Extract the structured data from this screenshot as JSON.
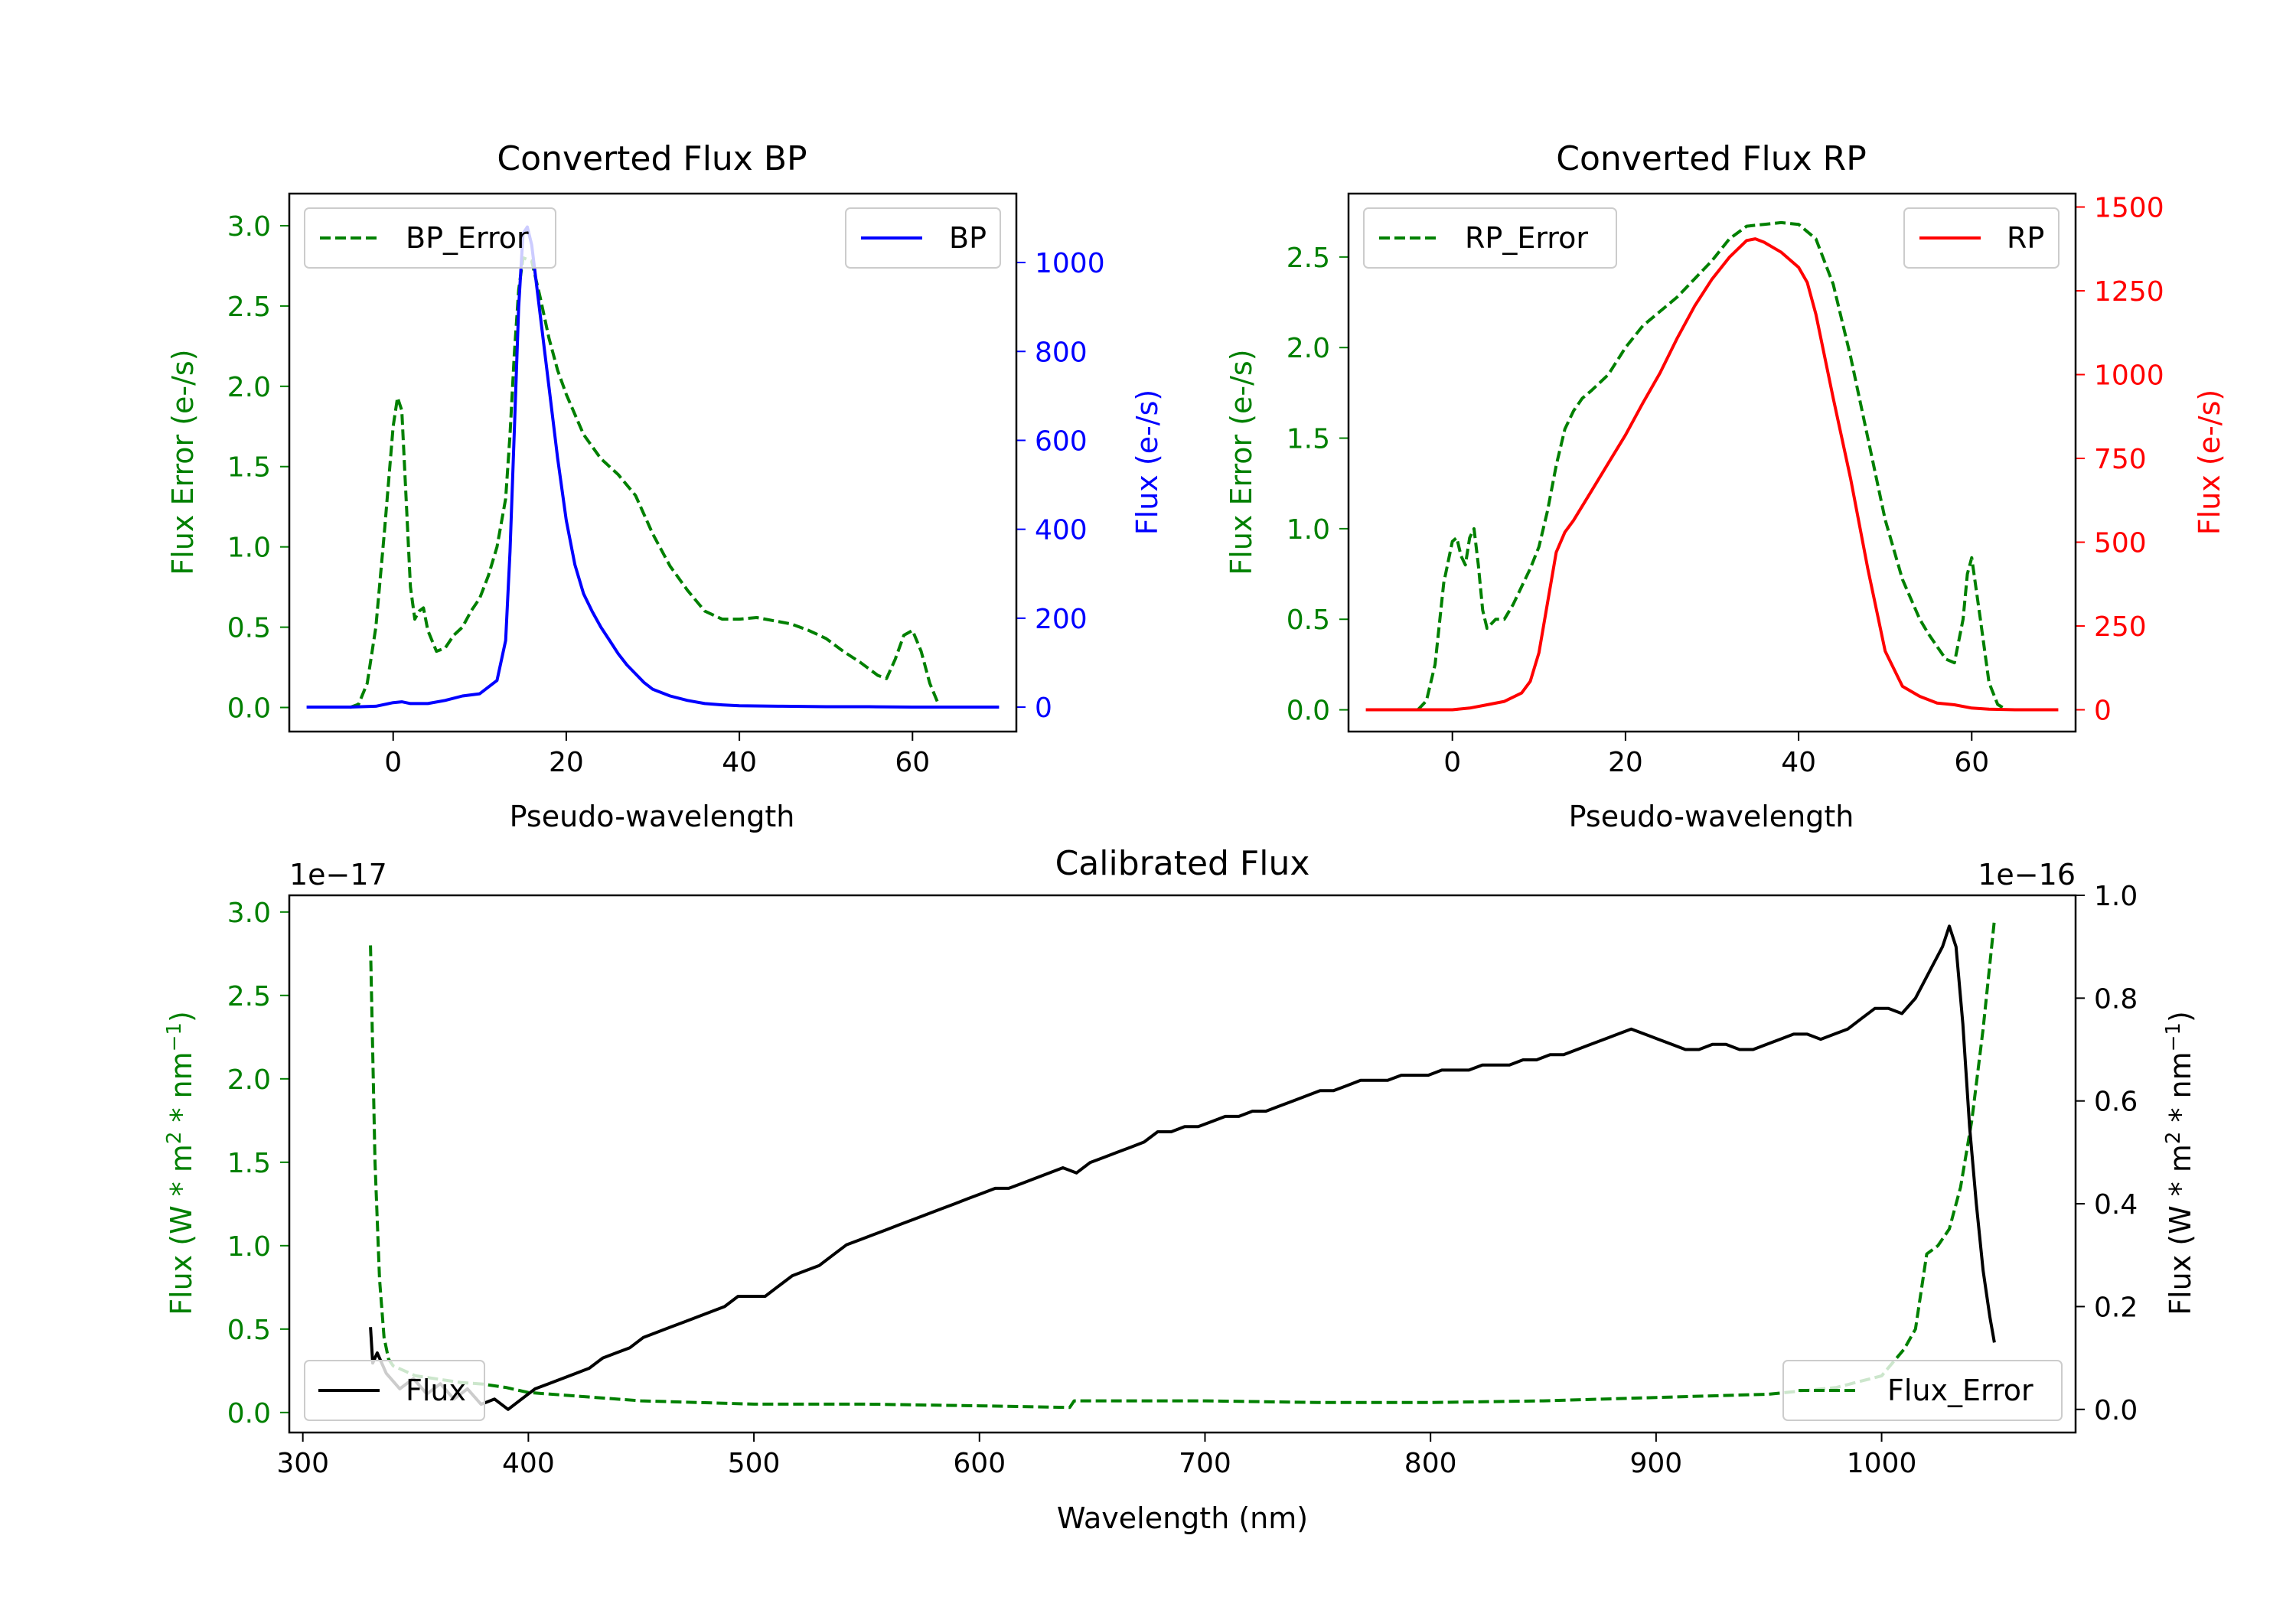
{
  "colors": {
    "green": "#008000",
    "blue": "#0000ff",
    "red": "#ff0000",
    "black": "#000000"
  },
  "chart_data": [
    {
      "type": "line",
      "title": "Converted Flux BP",
      "xlabel": "Pseudo-wavelength",
      "ylabel_left": "Flux Error (e-/s)",
      "ylabel_right": "Flux (e-/s)",
      "xlim": [
        -12,
        72
      ],
      "ylim_left": [
        -0.15,
        3.2
      ],
      "ylim_right": [
        -55,
        1155
      ],
      "xticks": [
        0,
        20,
        40,
        60
      ],
      "xtick_labels": [
        "0",
        "20",
        "40",
        "60"
      ],
      "yticks_left": [
        0.0,
        0.5,
        1.0,
        1.5,
        2.0,
        2.5,
        3.0
      ],
      "ytick_labels_left": [
        "0.0",
        "0.5",
        "1.0",
        "1.5",
        "2.0",
        "2.5",
        "3.0"
      ],
      "yticks_right": [
        0,
        200,
        400,
        600,
        800,
        1000
      ],
      "ytick_labels_right": [
        "0",
        "200",
        "400",
        "600",
        "800",
        "1000"
      ],
      "series": [
        {
          "name": "BP_Error",
          "axis": "left",
          "color": "#008000",
          "dash": true,
          "x": [
            -5,
            -4,
            -3,
            -2,
            -1,
            0,
            0.5,
            1,
            2,
            2.5,
            3,
            3.5,
            4,
            5,
            6,
            7,
            8,
            9,
            10,
            11,
            12,
            13,
            13.5,
            14,
            14.5,
            15,
            16,
            17,
            18,
            19,
            20,
            22,
            24,
            26,
            28,
            30,
            32,
            34,
            36,
            38,
            40,
            42,
            44,
            46,
            48,
            50,
            52,
            54,
            56,
            57,
            58,
            59,
            60,
            61,
            62,
            63
          ],
          "y": [
            0.0,
            0.02,
            0.15,
            0.5,
            1.1,
            1.75,
            1.93,
            1.85,
            0.75,
            0.55,
            0.6,
            0.62,
            0.48,
            0.35,
            0.37,
            0.45,
            0.5,
            0.6,
            0.68,
            0.82,
            1.0,
            1.3,
            1.7,
            2.2,
            2.6,
            2.8,
            2.78,
            2.55,
            2.3,
            2.1,
            1.95,
            1.7,
            1.55,
            1.45,
            1.32,
            1.08,
            0.88,
            0.73,
            0.6,
            0.55,
            0.55,
            0.56,
            0.54,
            0.52,
            0.48,
            0.43,
            0.35,
            0.28,
            0.2,
            0.18,
            0.3,
            0.45,
            0.48,
            0.35,
            0.15,
            0.02
          ]
        },
        {
          "name": "BP",
          "axis": "right",
          "color": "#0000ff",
          "dash": false,
          "x": [
            -10,
            -5,
            -2,
            0,
            1,
            2,
            4,
            6,
            8,
            10,
            12,
            13,
            13.5,
            14,
            14.5,
            15,
            15.5,
            16,
            17,
            18,
            19,
            20,
            21,
            22,
            23,
            24,
            25,
            26,
            27,
            28,
            29,
            30,
            32,
            34,
            36,
            38,
            40,
            45,
            50,
            55,
            60,
            65,
            70
          ],
          "y": [
            0,
            0,
            2,
            10,
            12,
            8,
            8,
            15,
            25,
            30,
            60,
            150,
            350,
            620,
            900,
            1065,
            1080,
            1040,
            880,
            720,
            560,
            420,
            320,
            255,
            215,
            180,
            150,
            120,
            95,
            75,
            55,
            40,
            25,
            15,
            8,
            5,
            3,
            2,
            1,
            1,
            0,
            0,
            0
          ]
        }
      ],
      "legend": [
        {
          "label": "BP_Error",
          "position": "upper left"
        },
        {
          "label": "BP",
          "position": "upper right"
        }
      ]
    },
    {
      "type": "line",
      "title": "Converted Flux RP",
      "xlabel": "Pseudo-wavelength",
      "ylabel_left": "Flux Error (e-/s)",
      "ylabel_right": "Flux (e-/s)",
      "xlim": [
        -12,
        72
      ],
      "ylim_left": [
        -0.12,
        2.85
      ],
      "ylim_right": [
        -65,
        1540
      ],
      "xticks": [
        0,
        20,
        40,
        60
      ],
      "xtick_labels": [
        "0",
        "20",
        "40",
        "60"
      ],
      "yticks_left": [
        0.0,
        0.5,
        1.0,
        1.5,
        2.0,
        2.5
      ],
      "ytick_labels_left": [
        "0.0",
        "0.5",
        "1.0",
        "1.5",
        "2.0",
        "2.5"
      ],
      "yticks_right": [
        0,
        250,
        500,
        750,
        1000,
        1250,
        1500
      ],
      "ytick_labels_right": [
        "0",
        "250",
        "500",
        "750",
        "1000",
        "1250",
        "1500"
      ],
      "series": [
        {
          "name": "RP_Error",
          "axis": "left",
          "color": "#008000",
          "dash": true,
          "x": [
            -4,
            -3,
            -2,
            -1,
            0,
            0.5,
            1,
            1.5,
            2,
            2.5,
            3,
            3.5,
            4,
            5,
            6,
            7,
            8,
            9,
            10,
            11,
            12,
            13,
            14,
            15,
            16,
            18,
            20,
            22,
            24,
            26,
            28,
            30,
            32,
            34,
            36,
            38,
            40,
            42,
            44,
            46,
            48,
            50,
            52,
            54,
            55,
            56,
            57,
            58,
            59,
            59.5,
            60,
            61,
            62,
            63,
            64
          ],
          "y": [
            0.0,
            0.05,
            0.25,
            0.7,
            0.93,
            0.95,
            0.85,
            0.8,
            0.95,
            1.0,
            0.8,
            0.55,
            0.45,
            0.5,
            0.5,
            0.58,
            0.68,
            0.78,
            0.9,
            1.1,
            1.35,
            1.55,
            1.65,
            1.72,
            1.76,
            1.85,
            2.0,
            2.12,
            2.2,
            2.28,
            2.38,
            2.48,
            2.6,
            2.67,
            2.68,
            2.69,
            2.68,
            2.6,
            2.35,
            1.95,
            1.5,
            1.05,
            0.72,
            0.5,
            0.42,
            0.35,
            0.28,
            0.26,
            0.5,
            0.75,
            0.84,
            0.5,
            0.15,
            0.03,
            0.0
          ]
        },
        {
          "name": "RP",
          "axis": "right",
          "color": "#ff0000",
          "dash": false,
          "x": [
            -10,
            -5,
            0,
            2,
            4,
            6,
            8,
            9,
            10,
            11,
            12,
            13,
            14,
            16,
            18,
            20,
            22,
            24,
            26,
            28,
            30,
            32,
            34,
            35,
            36,
            38,
            40,
            41,
            42,
            44,
            46,
            48,
            50,
            52,
            54,
            56,
            58,
            60,
            62,
            65,
            70
          ],
          "y": [
            0,
            0,
            0,
            5,
            15,
            25,
            50,
            85,
            170,
            320,
            470,
            530,
            565,
            650,
            735,
            820,
            915,
            1005,
            1110,
            1205,
            1285,
            1350,
            1400,
            1405,
            1395,
            1365,
            1320,
            1275,
            1180,
            930,
            690,
            420,
            175,
            70,
            40,
            20,
            15,
            5,
            2,
            0,
            0
          ]
        }
      ],
      "legend": [
        {
          "label": "RP_Error",
          "position": "upper left"
        },
        {
          "label": "RP",
          "position": "upper right"
        }
      ]
    },
    {
      "type": "line",
      "title": "Calibrated Flux",
      "xlabel": "Wavelength (nm)",
      "ylabel_left": "Flux (W * m$^2$ * nm$^{-1}$)",
      "ylabel_left_display": {
        "main": "Flux (W * m",
        "sup1": "2",
        "mid": " * nm",
        "sup2": "−1",
        "end": ")"
      },
      "ylabel_right_display": {
        "main": "Flux (W * m",
        "sup1": "2",
        "mid": " * nm",
        "sup2": "−1",
        "end": ")"
      },
      "left_offset_label": "1e−17",
      "right_offset_label": "1e−16",
      "xlim": [
        294,
        1086
      ],
      "ylim_left": [
        -0.12,
        3.1
      ],
      "ylim_right": [
        -0.045,
        1.0
      ],
      "xticks": [
        300,
        400,
        500,
        600,
        700,
        800,
        900,
        1000
      ],
      "xtick_labels": [
        "300",
        "400",
        "500",
        "600",
        "700",
        "800",
        "900",
        "1000"
      ],
      "yticks_left": [
        0.0,
        0.5,
        1.0,
        1.5,
        2.0,
        2.5,
        3.0
      ],
      "ytick_labels_left": [
        "0.0",
        "0.5",
        "1.0",
        "1.5",
        "2.0",
        "2.5",
        "3.0"
      ],
      "yticks_right": [
        0.0,
        0.2,
        0.4,
        0.6,
        0.8,
        1.0
      ],
      "ytick_labels_right": [
        "0.0",
        "0.2",
        "0.4",
        "0.6",
        "0.8",
        "1.0"
      ],
      "series": [
        {
          "name": "Flux_Error",
          "axis": "left",
          "color": "#008000",
          "dash": true,
          "x": [
            330,
            332,
            334,
            336,
            338,
            340,
            345,
            350,
            360,
            370,
            380,
            390,
            400,
            450,
            500,
            550,
            600,
            640,
            642,
            700,
            750,
            800,
            850,
            900,
            950,
            980,
            1000,
            1010,
            1015,
            1020,
            1025,
            1030,
            1035,
            1040,
            1045,
            1050
          ],
          "y": [
            2.8,
            1.5,
            0.8,
            0.45,
            0.32,
            0.28,
            0.25,
            0.22,
            0.2,
            0.18,
            0.17,
            0.15,
            0.12,
            0.07,
            0.05,
            0.05,
            0.04,
            0.03,
            0.07,
            0.07,
            0.06,
            0.06,
            0.07,
            0.09,
            0.11,
            0.15,
            0.22,
            0.38,
            0.5,
            0.95,
            1.0,
            1.1,
            1.35,
            1.75,
            2.3,
            2.95
          ]
        },
        {
          "name": "Flux",
          "axis": "right",
          "color": "#000000",
          "dash": false,
          "x": [
            330,
            331,
            333,
            337,
            343,
            349,
            355,
            361,
            367,
            373,
            379,
            385,
            391,
            397,
            403,
            409,
            415,
            421,
            427,
            433,
            439,
            445,
            451,
            457,
            463,
            469,
            475,
            481,
            487,
            493,
            499,
            505,
            511,
            517,
            523,
            529,
            535,
            541,
            547,
            553,
            559,
            565,
            571,
            577,
            583,
            589,
            595,
            601,
            607,
            613,
            619,
            625,
            631,
            637,
            643,
            649,
            655,
            661,
            667,
            673,
            679,
            685,
            691,
            697,
            703,
            709,
            715,
            721,
            727,
            733,
            739,
            745,
            751,
            757,
            763,
            769,
            775,
            781,
            787,
            793,
            799,
            805,
            811,
            817,
            823,
            829,
            835,
            841,
            847,
            853,
            859,
            865,
            871,
            877,
            883,
            889,
            895,
            901,
            907,
            913,
            919,
            925,
            931,
            937,
            943,
            949,
            955,
            961,
            967,
            973,
            979,
            985,
            991,
            997,
            1003,
            1009,
            1015,
            1021,
            1027,
            1030,
            1033,
            1036,
            1039,
            1042,
            1045,
            1048,
            1050
          ],
          "y": [
            0.16,
            0.09,
            0.11,
            0.07,
            0.04,
            0.06,
            0.03,
            0.05,
            0.02,
            0.04,
            0.01,
            0.02,
            0.0,
            0.02,
            0.04,
            0.05,
            0.06,
            0.07,
            0.08,
            0.1,
            0.11,
            0.12,
            0.14,
            0.15,
            0.16,
            0.17,
            0.18,
            0.19,
            0.2,
            0.22,
            0.22,
            0.22,
            0.24,
            0.26,
            0.27,
            0.28,
            0.3,
            0.32,
            0.33,
            0.34,
            0.35,
            0.36,
            0.37,
            0.38,
            0.39,
            0.4,
            0.41,
            0.42,
            0.43,
            0.43,
            0.44,
            0.45,
            0.46,
            0.47,
            0.46,
            0.48,
            0.49,
            0.5,
            0.51,
            0.52,
            0.54,
            0.54,
            0.55,
            0.55,
            0.56,
            0.57,
            0.57,
            0.58,
            0.58,
            0.59,
            0.6,
            0.61,
            0.62,
            0.62,
            0.63,
            0.64,
            0.64,
            0.64,
            0.65,
            0.65,
            0.65,
            0.66,
            0.66,
            0.66,
            0.67,
            0.67,
            0.67,
            0.68,
            0.68,
            0.69,
            0.69,
            0.7,
            0.71,
            0.72,
            0.73,
            0.74,
            0.73,
            0.72,
            0.71,
            0.7,
            0.7,
            0.71,
            0.71,
            0.7,
            0.7,
            0.71,
            0.72,
            0.73,
            0.73,
            0.72,
            0.73,
            0.74,
            0.76,
            0.78,
            0.78,
            0.77,
            0.8,
            0.85,
            0.9,
            0.94,
            0.9,
            0.75,
            0.55,
            0.4,
            0.27,
            0.18,
            0.13
          ]
        }
      ],
      "legend": [
        {
          "label": "Flux",
          "position": "lower left"
        },
        {
          "label": "Flux_Error",
          "position": "lower right"
        }
      ]
    }
  ]
}
